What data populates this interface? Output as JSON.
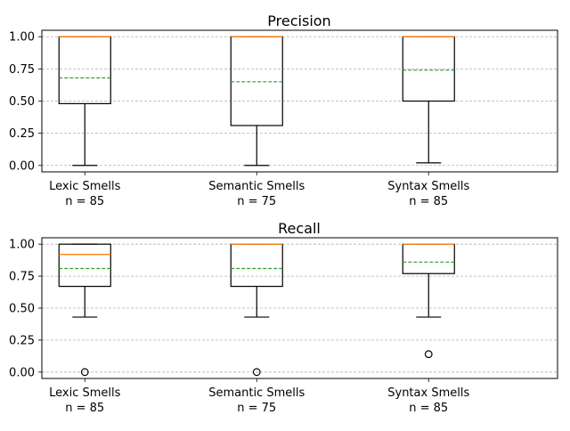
{
  "chart_data": [
    {
      "type": "box",
      "title": "Precision",
      "ylim": [
        -0.05,
        1.05
      ],
      "yticks": [
        0.0,
        0.25,
        0.5,
        0.75,
        1.0
      ],
      "ytick_labels": [
        "0.00",
        "0.25",
        "0.50",
        "0.75",
        "1.00"
      ],
      "grid": "y, dashed",
      "categories": [
        {
          "label": "Lexic Smells",
          "n_label": "n = 85",
          "whisker_low": 0.0,
          "q1": 0.48,
          "median": 1.0,
          "q3": 1.0,
          "whisker_high": 1.0,
          "mean": 0.68,
          "outliers": []
        },
        {
          "label": "Semantic Smells",
          "n_label": "n = 75",
          "whisker_low": 0.0,
          "q1": 0.31,
          "median": 1.0,
          "q3": 1.0,
          "whisker_high": 1.0,
          "mean": 0.65,
          "outliers": []
        },
        {
          "label": "Syntax Smells",
          "n_label": "n = 85",
          "whisker_low": 0.02,
          "q1": 0.5,
          "median": 1.0,
          "q3": 1.0,
          "whisker_high": 1.0,
          "mean": 0.74,
          "outliers": []
        }
      ]
    },
    {
      "type": "box",
      "title": "Recall",
      "ylim": [
        -0.05,
        1.05
      ],
      "yticks": [
        0.0,
        0.25,
        0.5,
        0.75,
        1.0
      ],
      "ytick_labels": [
        "0.00",
        "0.25",
        "0.50",
        "0.75",
        "1.00"
      ],
      "grid": "y, dashed",
      "categories": [
        {
          "label": "Lexic Smells",
          "n_label": "n = 85",
          "whisker_low": 0.43,
          "q1": 0.67,
          "median": 0.92,
          "q3": 1.0,
          "whisker_high": 1.0,
          "mean": 0.81,
          "outliers": [
            0.0
          ]
        },
        {
          "label": "Semantic Smells",
          "n_label": "n = 75",
          "whisker_low": 0.43,
          "q1": 0.67,
          "median": 1.0,
          "q3": 1.0,
          "whisker_high": 1.0,
          "mean": 0.81,
          "outliers": [
            0.0
          ]
        },
        {
          "label": "Syntax Smells",
          "n_label": "n = 85",
          "whisker_low": 0.43,
          "q1": 0.77,
          "median": 1.0,
          "q3": 1.0,
          "whisker_high": 1.0,
          "mean": 0.86,
          "outliers": [
            0.14
          ]
        }
      ]
    }
  ],
  "colors": {
    "box": "#000000",
    "median": "#ff7f0e",
    "mean": "#2ca02c",
    "grid": "#b0b0b0"
  }
}
